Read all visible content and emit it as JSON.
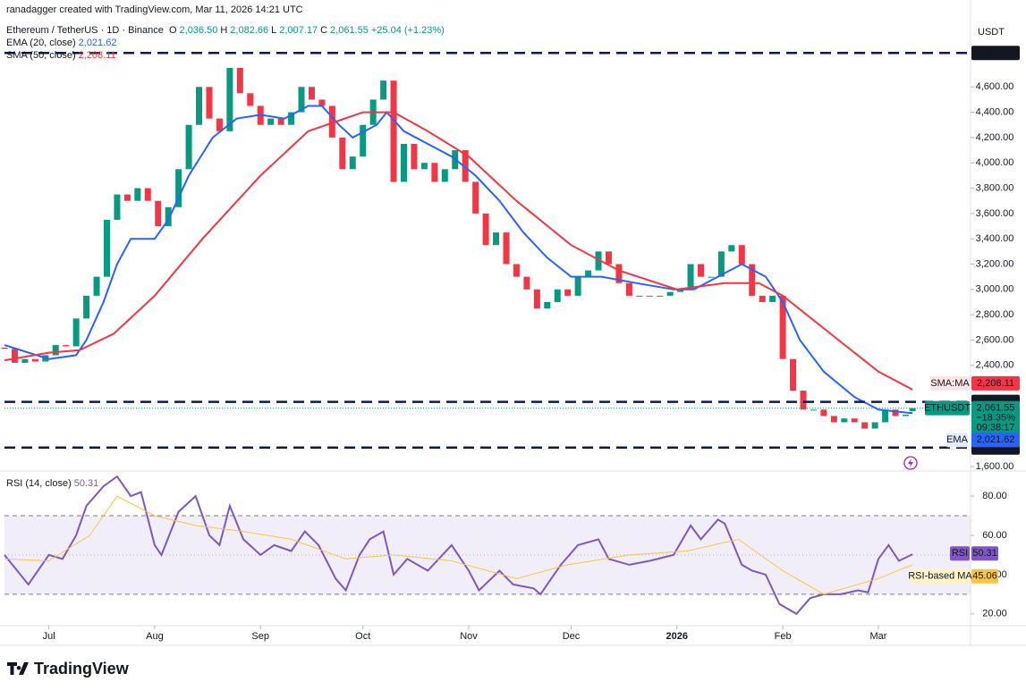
{
  "header": {
    "credit": "ranadagger created with TradingView.com, Mar 11, 2026 14:21 UTC",
    "symbol": "Ethereum / TetherUS · 1D · Binance",
    "ohlc": [
      "O",
      "2,036.50",
      "H",
      "2,082.66",
      "L",
      "2,007.17",
      "C",
      "2,061.55",
      "+25.04 (+1.23%)"
    ],
    "currency": "USDT",
    "brand": "TradingView"
  },
  "chart_data": [
    {
      "type": "candlestick",
      "xlim": [
        0,
        283
      ],
      "ylim": [
        1579,
        5075
      ],
      "yticks": [
        {
          "value": 1600,
          "label": "1,600.00"
        },
        {
          "value": 2400,
          "label": "2,400.00"
        },
        {
          "value": 2600,
          "label": "2,600.00"
        },
        {
          "value": 2800,
          "label": "2,800.00"
        },
        {
          "value": 3000,
          "label": "3,000.00"
        },
        {
          "value": 3200,
          "label": "3,200.00"
        },
        {
          "value": 3400,
          "label": "3,400.00"
        },
        {
          "value": 3600,
          "label": "3,600.00"
        },
        {
          "value": 3800,
          "label": "3,800.00"
        },
        {
          "value": 4000,
          "label": "4,000.00"
        },
        {
          "value": 4200,
          "label": "4,200.00"
        },
        {
          "value": 4400,
          "label": "4,400.00"
        },
        {
          "value": 4600,
          "label": "4,600.00"
        }
      ],
      "up_color": "#089981",
      "down_color": "#f23645",
      "candles": {
        "x": [
          0,
          3,
          6,
          9,
          12,
          15,
          18,
          21,
          24,
          27,
          30,
          33,
          36,
          39,
          42,
          45,
          48,
          51,
          54,
          57,
          60,
          63,
          66,
          69,
          72,
          75,
          78,
          81,
          84,
          87,
          90,
          93,
          96,
          99,
          102,
          105,
          108,
          111,
          114,
          117,
          120,
          123,
          126,
          129,
          132,
          135,
          138,
          141,
          144,
          147,
          150,
          153,
          156,
          159,
          162,
          165,
          168,
          171,
          174,
          177,
          180,
          183,
          186,
          189,
          192,
          195,
          198,
          201,
          204,
          207,
          210,
          213,
          216,
          219,
          222,
          225,
          228,
          231,
          234,
          237,
          240,
          243,
          246,
          249,
          252,
          255,
          258,
          261,
          264,
          266
        ],
        "open": [
          2540,
          2530,
          2420,
          2450,
          2430,
          2480,
          2560,
          2550,
          2770,
          2950,
          3100,
          3550,
          3750,
          3700,
          3800,
          3700,
          3500,
          3650,
          3950,
          4300,
          4600,
          4350,
          4250,
          4750,
          4550,
          4450,
          4300,
          4350,
          4300,
          4400,
          4600,
          4500,
          4450,
          4200,
          3950,
          4050,
          4300,
          4500,
          4650,
          3850,
          4150,
          3950,
          4000,
          3850,
          3950,
          4100,
          3850,
          3600,
          3350,
          3450,
          3200,
          3100,
          3000,
          2850,
          2900,
          3000,
          2950,
          3100,
          3150,
          3300,
          3200,
          3050,
          2950,
          2950,
          2950,
          2950,
          2980,
          3000,
          3200,
          3100,
          3100,
          3300,
          3350,
          3200,
          2950,
          2900,
          2950,
          2450,
          2200,
          2050,
          2050,
          2000,
          1950,
          1980,
          1950,
          1900,
          1950,
          2050,
          2000,
          2036.5
        ],
        "close": [
          2530,
          2420,
          2450,
          2430,
          2480,
          2560,
          2550,
          2770,
          2950,
          3100,
          3550,
          3750,
          3700,
          3800,
          3700,
          3500,
          3650,
          3950,
          4300,
          4600,
          4350,
          4250,
          4750,
          4550,
          4450,
          4300,
          4350,
          4300,
          4400,
          4600,
          4500,
          4450,
          4200,
          3950,
          4050,
          4300,
          4500,
          4650,
          3850,
          4150,
          3950,
          4000,
          3850,
          3950,
          4100,
          3850,
          3600,
          3350,
          3450,
          3200,
          3100,
          3000,
          2850,
          2900,
          3000,
          2950,
          3100,
          3150,
          3300,
          3200,
          3050,
          2950,
          2950,
          2950,
          2950,
          2980,
          3000,
          3200,
          3100,
          3100,
          3300,
          3350,
          3200,
          2950,
          2900,
          2950,
          2450,
          2200,
          2050,
          2050,
          2000,
          1950,
          1980,
          1950,
          1900,
          1950,
          2050,
          2000,
          2010,
          2061.55
        ]
      },
      "series": [
        {
          "name": "EMA (20, close)",
          "tag": "EMA",
          "last_label": "2,021.62",
          "color": "#2962ff",
          "x": [
            0,
            13,
            21,
            24,
            29,
            33,
            37,
            44,
            48,
            54,
            61,
            68,
            75,
            82,
            89,
            93,
            98,
            102,
            109,
            112,
            117,
            124,
            131,
            138,
            145,
            152,
            159,
            166,
            175,
            185,
            196,
            202,
            209,
            216,
            223,
            228,
            233,
            240,
            249,
            256,
            266
          ],
          "values": [
            2560,
            2450,
            2480,
            2600,
            2900,
            3200,
            3400,
            3400,
            3550,
            3900,
            4200,
            4350,
            4380,
            4350,
            4450,
            4450,
            4300,
            4200,
            4300,
            4400,
            4250,
            4150,
            4050,
            3900,
            3700,
            3450,
            3250,
            3100,
            3100,
            3050,
            3000,
            3000,
            3100,
            3200,
            3100,
            2900,
            2600,
            2350,
            2150,
            2050,
            2021.62
          ]
        },
        {
          "name": "SMA (50, close)",
          "tag": "SMA:MA",
          "last_label": "2,208.11",
          "color": "#f23645",
          "x": [
            0,
            13,
            22,
            32,
            44,
            58,
            75,
            89,
            105,
            114,
            124,
            136,
            150,
            166,
            180,
            197,
            211,
            221,
            228,
            242,
            256,
            266
          ],
          "values": [
            2440,
            2500,
            2520,
            2650,
            2950,
            3400,
            3900,
            4250,
            4400,
            4400,
            4250,
            4050,
            3700,
            3350,
            3150,
            3000,
            3050,
            3050,
            2950,
            2650,
            2350,
            2208.11
          ]
        }
      ],
      "levels": [
        {
          "value": 4868,
          "label": "4,868.00"
        },
        {
          "value": 2111,
          "label": "2,111.00"
        },
        {
          "value": 1750,
          "label": "1,750.00"
        }
      ],
      "last_price": {
        "symbol": "ETHUSDT",
        "value": 2061.55,
        "label": "2,061.55",
        "change": "−18.35%",
        "countdown": "09:38:17"
      }
    },
    {
      "type": "line",
      "xlim": [
        0,
        283
      ],
      "ylim": [
        14,
        91.4
      ],
      "yticks": [
        {
          "value": 20,
          "label": "20.00"
        },
        {
          "value": 40,
          "label": "40.00"
        },
        {
          "value": 60,
          "label": "60.00"
        },
        {
          "value": 80,
          "label": "80.00"
        }
      ],
      "xticks": [
        {
          "value": 13,
          "label": "Jul"
        },
        {
          "value": 44,
          "label": "Aug"
        },
        {
          "value": 75,
          "label": "Sep"
        },
        {
          "value": 105,
          "label": "Oct"
        },
        {
          "value": 136,
          "label": "Nov"
        },
        {
          "value": 166,
          "label": "Dec"
        },
        {
          "value": 197,
          "label": "2026"
        },
        {
          "value": 228,
          "label": "Feb"
        },
        {
          "value": 256,
          "label": "Mar"
        }
      ],
      "band": [
        30,
        70
      ],
      "midline": 50,
      "series": [
        {
          "name": "RSI (14, close)",
          "tag": "RSI",
          "last_label": "50.31",
          "color": "#7e57c2",
          "x": [
            0,
            7,
            13,
            17,
            21,
            24,
            29,
            33,
            37,
            40,
            44,
            46,
            51,
            56,
            60,
            63,
            66,
            70,
            75,
            79,
            84,
            88,
            92,
            97,
            100,
            104,
            107,
            111,
            114,
            118,
            124,
            131,
            136,
            139,
            145,
            149,
            155,
            157,
            163,
            168,
            174,
            177,
            183,
            189,
            196,
            201,
            204,
            209,
            211,
            216,
            219,
            223,
            227,
            232,
            236,
            240,
            245,
            250,
            253,
            256,
            259,
            262,
            266
          ],
          "values": [
            50,
            35,
            50,
            48,
            60,
            75,
            85,
            90,
            80,
            82,
            55,
            50,
            72,
            80,
            60,
            55,
            75,
            58,
            50,
            55,
            52,
            62,
            55,
            38,
            32,
            50,
            58,
            62,
            40,
            48,
            42,
            55,
            42,
            32,
            42,
            35,
            33,
            30,
            45,
            55,
            58,
            48,
            45,
            47,
            50,
            65,
            58,
            68,
            66,
            45,
            42,
            40,
            25,
            20,
            28,
            30,
            30,
            32,
            31,
            48,
            55,
            47,
            50.31
          ]
        },
        {
          "name": "RSI-based MA",
          "tag": "RSI-based MA",
          "last_label": "45.06",
          "color": "#f7c544",
          "x": [
            0,
            13,
            25,
            33,
            44,
            56,
            70,
            84,
            100,
            114,
            131,
            150,
            165,
            183,
            200,
            215,
            228,
            240,
            256,
            266
          ],
          "values": [
            48,
            47,
            60,
            80,
            70,
            65,
            62,
            58,
            48,
            50,
            47,
            38,
            45,
            50,
            52,
            58,
            42,
            30,
            38,
            45.06
          ]
        }
      ]
    }
  ]
}
